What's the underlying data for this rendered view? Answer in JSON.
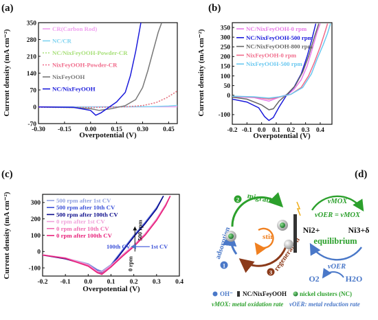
{
  "panels": {
    "a": "(a)",
    "b": "(b)",
    "c": "(c)",
    "d": "(d)"
  },
  "chart_data": [
    {
      "id": "a",
      "type": "line",
      "xlabel": "Overpotential (V)",
      "ylabel": "Current density (mA cm⁻²)",
      "xlim": [
        -0.3,
        0.5
      ],
      "ylim": [
        -70,
        350
      ],
      "xticks": [
        "-0.30",
        "-0.15",
        "0.00",
        "0.15",
        "0.30",
        "0.45"
      ],
      "xtick_vals": [
        -0.3,
        -0.15,
        0.0,
        0.15,
        0.3,
        0.45
      ],
      "yticks": [
        "-70",
        "0",
        "70",
        "140",
        "210",
        "280",
        "350"
      ],
      "ytick_vals": [
        -70,
        0,
        70,
        140,
        210,
        280,
        350
      ],
      "legend_position": "top-left",
      "series": [
        {
          "name": "CR(Carbon Rod)",
          "color": "#f0a0f0",
          "dash": "",
          "x": [
            -0.3,
            0.0,
            0.2,
            0.35,
            0.5
          ],
          "y": [
            0,
            0,
            0,
            0,
            0
          ]
        },
        {
          "name": "NC/CR",
          "color": "#7fd3f0",
          "dash": "",
          "x": [
            -0.3,
            0.0,
            0.2,
            0.35,
            0.45,
            0.5
          ],
          "y": [
            -1,
            -1,
            0,
            1,
            3,
            6
          ]
        },
        {
          "name": "NC/NixFeyOOH-Powder-CR",
          "color": "#a8e07a",
          "dash": "2 2",
          "x": [
            -0.3,
            0.0,
            0.2,
            0.3,
            0.38,
            0.44,
            0.5
          ],
          "y": [
            -2,
            -3,
            0,
            5,
            18,
            38,
            65
          ]
        },
        {
          "name": "NixFeyOOH-Powder-CR",
          "color": "#f06a8a",
          "dash": "2 2",
          "x": [
            -0.3,
            0.0,
            0.2,
            0.3,
            0.38,
            0.44,
            0.5
          ],
          "y": [
            -2,
            -3,
            0,
            5,
            18,
            38,
            66
          ]
        },
        {
          "name": "NixFeyOOH",
          "color": "#777777",
          "dash": "",
          "x": [
            -0.3,
            -0.1,
            0.0,
            0.05,
            0.12,
            0.2,
            0.26,
            0.3,
            0.33,
            0.36,
            0.39,
            0.41
          ],
          "y": [
            -1,
            -3,
            -8,
            -15,
            -8,
            5,
            30,
            80,
            150,
            230,
            310,
            350
          ]
        },
        {
          "name": "NC/NixFeyOOH",
          "color": "#1a1adb",
          "dash": "",
          "x": [
            -0.3,
            -0.1,
            0.0,
            0.03,
            0.06,
            0.1,
            0.15,
            0.2,
            0.23,
            0.26,
            0.28,
            0.29
          ],
          "y": [
            -1,
            -2,
            -15,
            -35,
            -25,
            -5,
            20,
            60,
            130,
            230,
            310,
            350
          ]
        }
      ]
    },
    {
      "id": "b",
      "type": "line",
      "xlabel": "Overpotential (V)",
      "ylabel": "Current density (mA cm⁻²)",
      "xlim": [
        -0.2,
        0.48
      ],
      "ylim": [
        -150,
        375
      ],
      "xticks": [
        "-0.2",
        "-0.1",
        "0.0",
        "0.1",
        "0.2",
        "0.3",
        "0.4"
      ],
      "xtick_vals": [
        -0.2,
        -0.1,
        0.0,
        0.1,
        0.2,
        0.3,
        0.4
      ],
      "yticks": [
        "-100",
        "0",
        "50",
        "100",
        "150",
        "200",
        "250",
        "300",
        "350"
      ],
      "ytick_vals": [
        -100,
        0,
        50,
        100,
        150,
        200,
        250,
        300,
        350
      ],
      "legend_position": "top-left",
      "series": [
        {
          "name": "NC/NixFeyOOH-0 rpm",
          "color": "#e87ae8",
          "x": [
            -0.2,
            -0.05,
            0.05,
            0.12,
            0.18,
            0.22,
            0.27,
            0.31,
            0.35,
            0.38,
            0.4
          ],
          "y": [
            -8,
            -12,
            -30,
            -10,
            5,
            30,
            80,
            150,
            250,
            330,
            370
          ]
        },
        {
          "name": "NC/NixFeyOOH-500 rpm",
          "color": "#1a1adb",
          "x": [
            -0.2,
            -0.1,
            -0.02,
            0.02,
            0.05,
            0.08,
            0.12,
            0.17,
            0.22,
            0.27,
            0.31,
            0.34,
            0.37
          ],
          "y": [
            -20,
            -35,
            -65,
            -110,
            -130,
            -115,
            -60,
            0,
            40,
            110,
            200,
            280,
            370
          ]
        },
        {
          "name": "NC/NixFeyOOH-800 rpm",
          "color": "#666666",
          "x": [
            -0.2,
            -0.1,
            0.0,
            0.05,
            0.08,
            0.12,
            0.18,
            0.23,
            0.28,
            0.32,
            0.36,
            0.39
          ],
          "y": [
            -10,
            -20,
            -50,
            -75,
            -70,
            -30,
            10,
            50,
            120,
            200,
            300,
            370
          ]
        },
        {
          "name": "NixFeyOOH-0 rpm",
          "color": "#f06a8a",
          "x": [
            -0.2,
            -0.05,
            0.05,
            0.12,
            0.2,
            0.27,
            0.32,
            0.36,
            0.4,
            0.43,
            0.45
          ],
          "y": [
            -5,
            -10,
            -20,
            -10,
            5,
            40,
            100,
            170,
            250,
            320,
            370
          ]
        },
        {
          "name": "NixFeyOOH-500 rpm",
          "color": "#6ac8f0",
          "x": [
            -0.2,
            -0.05,
            0.05,
            0.12,
            0.2,
            0.28,
            0.34,
            0.38,
            0.42,
            0.45,
            0.47
          ],
          "y": [
            -5,
            -8,
            -15,
            -8,
            5,
            40,
            110,
            190,
            260,
            320,
            370
          ]
        }
      ]
    },
    {
      "id": "c",
      "type": "line",
      "xlabel": "Overpotential (V)",
      "ylabel": "Current density (mA cm⁻²)",
      "xlim": [
        -0.2,
        0.4
      ],
      "ylim": [
        -150,
        350
      ],
      "xticks": [
        "-0.2",
        "-0.1",
        "0.0",
        "0.1",
        "0.2",
        "0.3",
        "0.4"
      ],
      "xtick_vals": [
        -0.2,
        -0.1,
        0.0,
        0.1,
        0.2,
        0.3,
        0.4
      ],
      "yticks": [
        "-100",
        "0",
        "100",
        "200",
        "300"
      ],
      "ytick_vals": [
        -100,
        0,
        100,
        200,
        300
      ],
      "legend_position": "top-left",
      "annotations": {
        "arrow_top": "500 rpm",
        "arrow_bottom": "0 rpm",
        "cv_first": "1st CV",
        "cv_last": "100th CV"
      },
      "series": [
        {
          "name": "500 rpm after 1st CV",
          "color": "#8fa0e0",
          "x": [
            -0.2,
            -0.1,
            0.0,
            0.04,
            0.06,
            0.1,
            0.15,
            0.2,
            0.25,
            0.3,
            0.33
          ],
          "y": [
            -20,
            -40,
            -75,
            -110,
            -120,
            -80,
            10,
            100,
            180,
            270,
            340
          ]
        },
        {
          "name": "500 rpm after 10th CV",
          "color": "#3a50d8",
          "x": [
            -0.2,
            -0.1,
            0.0,
            0.04,
            0.06,
            0.1,
            0.15,
            0.2,
            0.25,
            0.3,
            0.33
          ],
          "y": [
            -20,
            -42,
            -80,
            -115,
            -125,
            -85,
            5,
            95,
            175,
            265,
            340
          ]
        },
        {
          "name": "500 rpm after 100th CV",
          "color": "#0a0a8a",
          "x": [
            -0.2,
            -0.1,
            0.0,
            0.04,
            0.06,
            0.1,
            0.15,
            0.2,
            0.25,
            0.3,
            0.33
          ],
          "y": [
            -22,
            -45,
            -85,
            -120,
            -130,
            -90,
            0,
            90,
            170,
            260,
            340
          ]
        },
        {
          "name": "0 rpm after 1st CV",
          "color": "#f0a0d8",
          "x": [
            -0.2,
            -0.1,
            0.0,
            0.04,
            0.06,
            0.1,
            0.15,
            0.2,
            0.25,
            0.3,
            0.34,
            0.36
          ],
          "y": [
            -20,
            -38,
            -80,
            -120,
            -125,
            -85,
            -20,
            40,
            110,
            200,
            290,
            340
          ]
        },
        {
          "name": "0 rpm after 10th CV",
          "color": "#f06ab0",
          "x": [
            -0.2,
            -0.1,
            0.0,
            0.04,
            0.06,
            0.1,
            0.15,
            0.2,
            0.25,
            0.3,
            0.34,
            0.36
          ],
          "y": [
            -20,
            -40,
            -85,
            -125,
            -135,
            -90,
            -25,
            35,
            105,
            195,
            285,
            340
          ]
        },
        {
          "name": "0 rpm after 100th CV",
          "color": "#e8207a",
          "x": [
            -0.2,
            -0.1,
            0.0,
            0.04,
            0.06,
            0.1,
            0.15,
            0.2,
            0.25,
            0.3,
            0.34,
            0.36
          ],
          "y": [
            -22,
            -42,
            -90,
            -130,
            -140,
            -95,
            -30,
            30,
            100,
            190,
            280,
            340
          ]
        }
      ]
    }
  ],
  "scheme": {
    "migration": "migration",
    "adsorption": "adsorption",
    "regeneration": "regeneration",
    "stir": "stir",
    "step1": "1",
    "step2": "2",
    "step3": "3",
    "v_mox_top": "vMOX",
    "v_oer_eq": "vOER = vMOX",
    "ni2": "Ni2+",
    "ni3": "Ni3+δ",
    "equilibrium": "equilibrium",
    "v_oer_bottom": "vOER",
    "o2": "O2",
    "h2o": "H2O",
    "legend_oh": "OH⁻",
    "legend_electrode": "NC/NixFeyOOH",
    "legend_nc": "nickel clusters (NC)",
    "note1": "vMOX: metal oxidation rate",
    "note2": "vOER: metal reduction rate",
    "colors": {
      "green": "#2ca02c",
      "blue": "#4a78c8",
      "brown": "#8b3a1a",
      "orange": "#f08020"
    }
  }
}
